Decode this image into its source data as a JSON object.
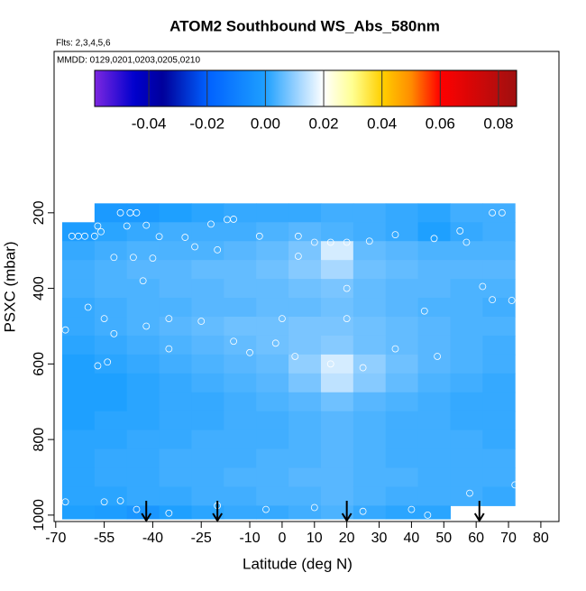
{
  "chart_data": {
    "type": "heatmap",
    "title": "ATOM2 Southbound WS_Abs_580nm",
    "subtitle": "Flts: 2,3,4,5,6",
    "annotation": "MMDD: 0129,0201,0203,0205,0210",
    "x_label": "Latitude (deg N)",
    "y_label": "PSXC (mbar)",
    "xlim": [
      -70.5,
      85.6
    ],
    "ylim": [
      1017,
      -227
    ],
    "xticks": [
      -70,
      -55,
      -40,
      -25,
      -10,
      0,
      10,
      20,
      30,
      40,
      50,
      60,
      70,
      80
    ],
    "yticks": [
      200,
      400,
      600,
      800,
      1000
    ],
    "x_edges": [
      -68,
      -58,
      -48,
      -38,
      -28,
      -18,
      -8,
      2,
      12,
      22,
      32,
      42,
      52,
      62,
      72
    ],
    "y_edges": [
      175,
      225,
      275,
      325,
      375,
      425,
      475,
      525,
      575,
      625,
      675,
      725,
      775,
      825,
      875,
      925,
      975,
      1010
    ],
    "values": [
      [
        null,
        -0.002,
        -0.002,
        0.0,
        0.001,
        0.002,
        0.002,
        0.002,
        0.003,
        0.003,
        0.002,
        0.001,
        0.003,
        0.003
      ],
      [
        -0.001,
        0.001,
        0.002,
        0.003,
        0.003,
        0.003,
        0.004,
        0.005,
        0.004,
        0.003,
        0.002,
        0.0,
        0.002,
        0.003
      ],
      [
        0.002,
        0.003,
        0.004,
        0.004,
        0.004,
        0.005,
        0.006,
        0.008,
        0.016,
        0.006,
        0.005,
        0.004,
        0.004,
        0.004
      ],
      [
        0.003,
        0.004,
        0.005,
        0.005,
        0.006,
        0.006,
        0.007,
        0.009,
        0.012,
        0.007,
        0.006,
        0.005,
        0.005,
        0.005
      ],
      [
        0.003,
        0.004,
        0.004,
        0.005,
        0.005,
        0.006,
        0.006,
        0.007,
        0.008,
        0.006,
        0.005,
        0.005,
        0.004,
        0.004
      ],
      [
        0.002,
        0.003,
        0.004,
        0.004,
        0.005,
        0.005,
        0.006,
        0.006,
        0.007,
        0.006,
        0.005,
        0.004,
        0.004,
        0.003
      ],
      [
        0.002,
        0.003,
        0.004,
        0.005,
        0.006,
        0.007,
        0.007,
        0.008,
        0.008,
        0.007,
        0.006,
        0.005,
        0.004,
        0.004
      ],
      [
        0.001,
        0.002,
        0.003,
        0.004,
        0.005,
        0.006,
        0.007,
        0.008,
        0.009,
        0.007,
        0.006,
        0.005,
        0.004,
        0.003
      ],
      [
        0.0,
        0.001,
        0.002,
        0.003,
        0.004,
        0.005,
        0.006,
        0.01,
        0.016,
        0.01,
        0.007,
        0.005,
        0.004,
        0.003
      ],
      [
        0.0,
        0.0,
        0.001,
        0.002,
        0.003,
        0.004,
        0.005,
        0.008,
        0.014,
        0.009,
        0.006,
        0.004,
        0.003,
        0.002
      ],
      [
        0.0,
        0.0,
        0.001,
        0.002,
        0.002,
        0.003,
        0.004,
        0.005,
        0.007,
        0.005,
        0.004,
        0.003,
        0.002,
        0.002
      ],
      [
        0.0,
        0.001,
        0.001,
        0.002,
        0.002,
        0.003,
        0.003,
        0.004,
        0.005,
        0.004,
        0.003,
        0.003,
        0.002,
        0.002
      ],
      [
        0.001,
        0.001,
        0.002,
        0.002,
        0.003,
        0.003,
        0.003,
        0.004,
        0.005,
        0.004,
        0.003,
        0.003,
        0.003,
        0.002
      ],
      [
        0.001,
        0.002,
        0.002,
        0.003,
        0.003,
        0.003,
        0.004,
        0.004,
        0.005,
        0.004,
        0.003,
        0.003,
        0.003,
        0.003
      ],
      [
        0.001,
        0.002,
        0.002,
        0.003,
        0.003,
        0.004,
        0.004,
        0.005,
        0.005,
        0.004,
        0.004,
        0.003,
        0.003,
        0.003
      ],
      [
        0.001,
        0.001,
        0.002,
        0.002,
        0.003,
        0.003,
        0.004,
        0.004,
        0.005,
        0.004,
        0.003,
        0.003,
        0.003,
        0.002
      ],
      [
        0.0,
        -0.001,
        -0.003,
        0.0,
        0.001,
        0.002,
        0.002,
        0.003,
        0.004,
        0.002,
        0.001,
        0.001,
        null,
        null
      ]
    ],
    "colorbar_lim": [
      -0.0586,
      0.0862
    ],
    "colorbar_ticks": [
      {
        "value": -0.04,
        "label": "-0.04"
      },
      {
        "value": -0.02,
        "label": "-0.02"
      },
      {
        "value": 0,
        "label": "0.00"
      },
      {
        "value": 0.02,
        "label": "0.02"
      },
      {
        "value": 0.04,
        "label": "0.04"
      },
      {
        "value": 0.06,
        "label": "0.06"
      },
      {
        "value": 0.08,
        "label": "0.08"
      }
    ],
    "colorscale": [
      [
        -0.06,
        "#8a2be2"
      ],
      [
        -0.045,
        "#0000cd"
      ],
      [
        -0.035,
        "#00009a"
      ],
      [
        -0.02,
        "#0060ff"
      ],
      [
        0,
        "#1ea0ff"
      ],
      [
        0.012,
        "#a8d8ff"
      ],
      [
        0.02,
        "#ffffff"
      ],
      [
        0.03,
        "#ffff90"
      ],
      [
        0.04,
        "#ffd000"
      ],
      [
        0.05,
        "#ff8c00"
      ],
      [
        0.06,
        "#ff0000"
      ],
      [
        0.086,
        "#a01010"
      ]
    ],
    "points": {
      "x": [
        -57,
        -56,
        -65,
        -63,
        -61,
        -58,
        -48,
        -42,
        -47,
        -45,
        -50,
        -38,
        -30,
        -22,
        -17,
        -15,
        -27,
        -20,
        -52,
        -46,
        -40,
        -43,
        5,
        -7,
        5,
        10,
        15,
        20,
        27,
        35,
        47,
        55,
        57,
        65,
        68,
        20,
        62,
        -55,
        -60,
        -35,
        -25,
        0,
        20,
        44,
        65,
        -67,
        -52,
        -42,
        -35,
        -10,
        4,
        15,
        25,
        35,
        48,
        -57,
        -54,
        -67,
        -55,
        -50,
        -45,
        -35,
        -20,
        -5,
        10,
        25,
        40,
        45,
        58,
        72,
        71,
        -2,
        -15
      ],
      "y": [
        235,
        250,
        262,
        262,
        262,
        262,
        235,
        233,
        200,
        200,
        200,
        263,
        265,
        230,
        218,
        217,
        290,
        298,
        318,
        318,
        320,
        380,
        262,
        262,
        315,
        278,
        278,
        278,
        275,
        258,
        268,
        248,
        278,
        200,
        200,
        400,
        395,
        480,
        450,
        480,
        487,
        480,
        480,
        460,
        430,
        510,
        520,
        500,
        560,
        570,
        580,
        600,
        610,
        560,
        580,
        605,
        595,
        965,
        965,
        962,
        985,
        995,
        975,
        985,
        980,
        990,
        985,
        1000,
        942,
        920,
        432,
        545,
        540
      ]
    },
    "arrows": [
      -42,
      -20,
      20,
      61
    ]
  }
}
